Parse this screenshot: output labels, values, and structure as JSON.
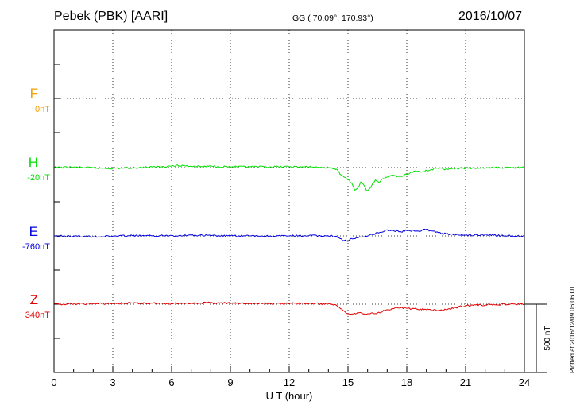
{
  "header": {
    "station": "Pebek (PBK)  [AARI]",
    "coords": "GG ( 70.09°, 170.93°)",
    "date": "2016/10/07"
  },
  "plotted_note": "Plotted at 2016/12/09 06:06 UT",
  "chart_data": {
    "type": "line",
    "title": "Pebek (PBK)  [AARI]",
    "xlabel": "U T (hour)",
    "xlim": [
      0,
      24
    ],
    "x_ticks": [
      "0",
      "3",
      "6",
      "9",
      "12",
      "15",
      "18",
      "21",
      "24"
    ],
    "grid": true,
    "scale_bar": {
      "label": "500 nT",
      "value_nT": 500
    },
    "series": [
      {
        "name": "F",
        "baseline": "0nT",
        "color": "#f0a000",
        "trace": false,
        "x": [],
        "values": []
      },
      {
        "name": "H",
        "baseline": "-20nT",
        "color": "#00e000",
        "trace": true,
        "x": [
          0,
          1,
          2,
          3,
          4,
          5,
          6,
          6.6,
          7.5,
          8,
          9,
          10,
          11,
          12,
          13,
          14,
          14.3,
          14.5,
          14.6,
          14.8,
          15.0,
          15.2,
          15.35,
          15.5,
          15.65,
          15.8,
          15.95,
          16.1,
          16.25,
          16.4,
          16.6,
          16.8,
          17.0,
          17.3,
          17.6,
          18.0,
          18.4,
          18.8,
          19.5,
          20,
          21,
          22,
          23,
          24
        ],
        "values": [
          0,
          3,
          -2,
          -5,
          -2,
          4,
          12,
          14,
          8,
          10,
          6,
          5,
          5,
          6,
          4,
          0,
          -4,
          -25,
          -50,
          -70,
          -90,
          -115,
          -165,
          -150,
          -105,
          -125,
          -170,
          -155,
          -120,
          -90,
          -110,
          -80,
          -70,
          -55,
          -65,
          -50,
          -25,
          -30,
          -5,
          -10,
          -5,
          -3,
          0,
          0
        ]
      },
      {
        "name": "E",
        "baseline": "-760nT",
        "color": "#0000e0",
        "trace": true,
        "x": [
          0,
          1,
          2,
          3,
          4,
          5,
          6,
          7,
          8,
          9,
          10,
          11,
          12,
          13,
          14,
          14.4,
          14.6,
          14.8,
          15.0,
          15.1,
          15.3,
          15.5,
          15.7,
          15.9,
          16.1,
          16.3,
          16.5,
          16.8,
          17.0,
          17.3,
          17.6,
          18.0,
          18.4,
          18.6,
          18.9,
          19.2,
          19.6,
          20.0,
          21,
          22,
          23,
          24
        ],
        "values": [
          0,
          -3,
          -5,
          -2,
          2,
          0,
          3,
          5,
          2,
          0,
          0,
          -2,
          0,
          2,
          0,
          -2,
          -20,
          -35,
          -40,
          -25,
          -20,
          -15,
          -10,
          -5,
          5,
          10,
          25,
          30,
          45,
          40,
          30,
          40,
          35,
          35,
          50,
          40,
          25,
          15,
          5,
          10,
          0,
          0
        ]
      },
      {
        "name": "Z",
        "baseline": "340nT",
        "color": "#e00000",
        "trace": true,
        "x": [
          0,
          1,
          2,
          3,
          4,
          5,
          6,
          7,
          8,
          9,
          10,
          11,
          12,
          13,
          14,
          14.3,
          14.5,
          14.8,
          15.0,
          15.2,
          15.5,
          15.8,
          16.0,
          16.5,
          17.0,
          17.5,
          18.0,
          18.5,
          19.0,
          19.5,
          20.0,
          20.5,
          21.0,
          22,
          23,
          24
        ],
        "values": [
          0,
          2,
          3,
          5,
          8,
          7,
          5,
          8,
          10,
          7,
          5,
          5,
          5,
          5,
          2,
          -2,
          -20,
          -50,
          -70,
          -72,
          -60,
          -72,
          -70,
          -65,
          -40,
          -25,
          -30,
          -35,
          -40,
          -45,
          -40,
          -25,
          -10,
          -5,
          0,
          0
        ]
      }
    ]
  }
}
